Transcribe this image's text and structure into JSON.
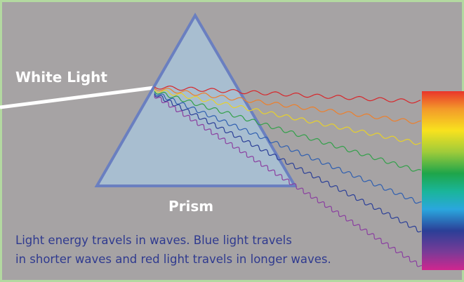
{
  "labels": {
    "white_light": "White Light",
    "prism": "Prism"
  },
  "caption": [
    "Light energy travels in waves. Blue light travels",
    "in shorter waves and red light travels in longer waves."
  ]
}
